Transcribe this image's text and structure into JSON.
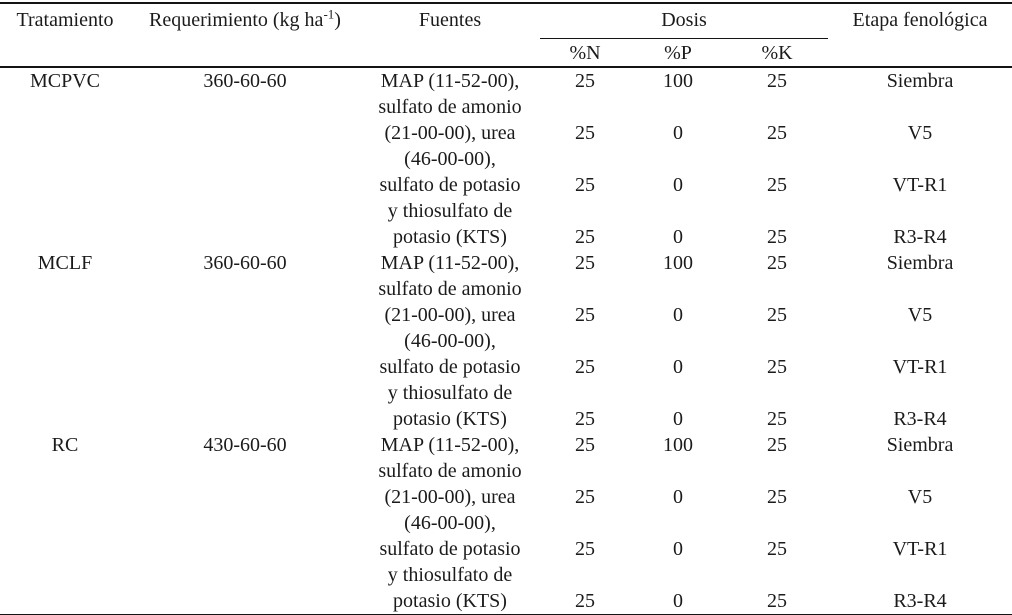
{
  "page": {
    "background": "#ffffff",
    "text_color": "#1b1b1b",
    "rule_color": "#141414"
  },
  "table": {
    "header": {
      "tratamiento": "Tratamiento",
      "requerimiento_prefix": "Requerimiento (kg ha",
      "requerimiento_sup": "-1",
      "requerimiento_suffix": ")",
      "fuentes": "Fuentes",
      "dosis": "Dosis",
      "dosis_n": "%N",
      "dosis_p": "%P",
      "dosis_k": "%K",
      "etapa": "Etapa fenológica"
    },
    "blocks": [
      {
        "tratamiento": "MCPVC",
        "requerimiento": "360-60-60",
        "fuentes_lines": [
          "MAP (11-52-00),",
          "sulfato de amonio",
          "(21-00-00), urea",
          "(46-00-00),",
          "sulfato de potasio",
          "y thiosulfato de",
          "potasio (KTS)"
        ],
        "dosis": [
          {
            "n": "25",
            "p": "100",
            "k": "25",
            "etapa": "Siembra"
          },
          {
            "n": "25",
            "p": "0",
            "k": "25",
            "etapa": "V5"
          },
          {
            "n": "25",
            "p": "0",
            "k": "25",
            "etapa": "VT-R1"
          },
          {
            "n": "25",
            "p": "0",
            "k": "25",
            "etapa": "R3-R4"
          }
        ]
      },
      {
        "tratamiento": "MCLF",
        "requerimiento": "360-60-60",
        "fuentes_lines": [
          "MAP (11-52-00),",
          "sulfato de amonio",
          "(21-00-00), urea",
          "(46-00-00),",
          "sulfato de potasio",
          "y thiosulfato de",
          "potasio (KTS)"
        ],
        "dosis": [
          {
            "n": "25",
            "p": "100",
            "k": "25",
            "etapa": "Siembra"
          },
          {
            "n": "25",
            "p": "0",
            "k": "25",
            "etapa": "V5"
          },
          {
            "n": "25",
            "p": "0",
            "k": "25",
            "etapa": "VT-R1"
          },
          {
            "n": "25",
            "p": "0",
            "k": "25",
            "etapa": "R3-R4"
          }
        ]
      },
      {
        "tratamiento": "RC",
        "requerimiento": "430-60-60",
        "fuentes_lines": [
          "MAP (11-52-00),",
          "sulfato de amonio",
          "(21-00-00), urea",
          "(46-00-00),",
          "sulfato de potasio",
          "y thiosulfato de",
          "potasio (KTS)"
        ],
        "dosis": [
          {
            "n": "25",
            "p": "100",
            "k": "25",
            "etapa": "Siembra"
          },
          {
            "n": "25",
            "p": "0",
            "k": "25",
            "etapa": "V5"
          },
          {
            "n": "25",
            "p": "0",
            "k": "25",
            "etapa": "VT-R1"
          },
          {
            "n": "25",
            "p": "0",
            "k": "25",
            "etapa": "R3-R4"
          }
        ]
      }
    ]
  }
}
